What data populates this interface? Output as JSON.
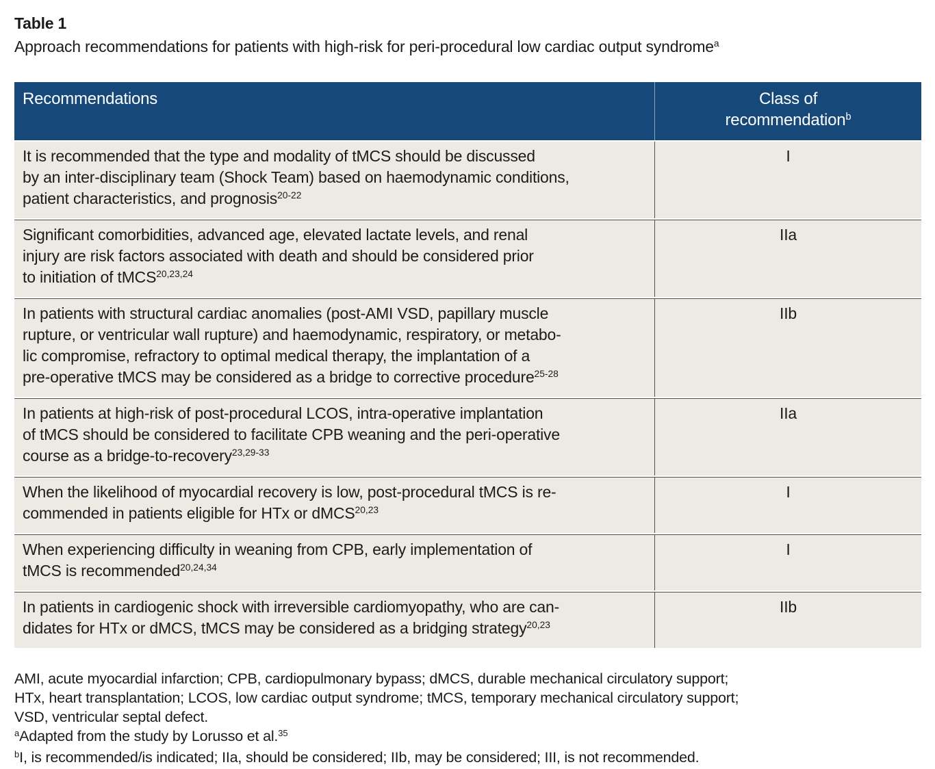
{
  "table_label": "Table 1",
  "caption": {
    "text": "Approach recommendations for patients with high-risk for peri-procedural low cardiac output syndrome",
    "sup": "a"
  },
  "header": {
    "col1": "Recommendations",
    "col2_line1": "Class of",
    "col2_line2": "recommendation",
    "col2_sup": "b"
  },
  "rows": [
    {
      "text": "It is recommended that the type and modality of tMCS should be discussed\nby an inter-disciplinary team (Shock Team) based on haemodynamic conditions,\npatient characteristics, and prognosis",
      "ref": "20-22",
      "class": "I"
    },
    {
      "text": "Significant comorbidities, advanced age, elevated lactate levels, and renal\ninjury are risk factors associated with death and should be considered prior\nto initiation of tMCS",
      "ref": "20,23,24",
      "class": "IIa"
    },
    {
      "text": "In patients with structural cardiac anomalies (post-AMI VSD, papillary muscle\nrupture, or ventricular wall rupture) and haemodynamic, respiratory, or metabo-\nlic compromise, refractory to optimal medical therapy, the implantation of a\npre-operative tMCS may be considered as a bridge to corrective procedure",
      "ref": "25-28",
      "class": "IIb"
    },
    {
      "text": "In patients at high-risk of post-procedural LCOS, intra-operative implantation\nof tMCS should be considered to facilitate CPB weaning and the peri-operative\ncourse as a bridge-to-recovery",
      "ref": "23,29-33",
      "class": "IIa"
    },
    {
      "text": "When the likelihood of myocardial recovery is low, post-procedural tMCS is re-\ncommended in patients eligible for HTx or dMCS",
      "ref": "20,23",
      "class": "I"
    },
    {
      "text": "When experiencing difficulty in weaning from CPB, early implementation of\ntMCS is recommended",
      "ref": "20,24,34",
      "class": "I"
    },
    {
      "text": "In patients in cardiogenic shock with irreversible cardiomyopathy, who are can-\ndidates for HTx or dMCS, tMCS may be considered as a bridging strategy",
      "ref": "20,23",
      "class": "IIb"
    }
  ],
  "footnotes": {
    "abbreviations": "AMI, acute myocardial infarction; CPB, cardiopulmonary bypass; dMCS, durable mechanical circulatory support;\nHTx, heart transplantation; LCOS, low cardiac output syndrome; tMCS, temporary mechanical circulatory support;\nVSD, ventricular septal defect.",
    "note_a": {
      "sup": "a",
      "text": "Adapted from the study by Lorusso et al.",
      "ref": "35"
    },
    "note_b": {
      "sup": "b",
      "text": "I, is recommended/is indicated; IIa, should be considered; IIb, may be considered; III, is not recommended."
    }
  },
  "colors": {
    "header_bg": "#16497a",
    "row_bg": "#edeae4",
    "divider": "#4f4f4f",
    "text": "#1b1b1b",
    "header_text": "#ffffff"
  }
}
